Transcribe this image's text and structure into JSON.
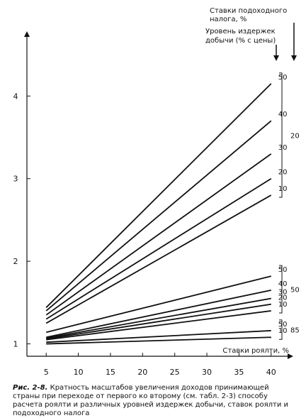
{
  "chart_data": {
    "type": "line",
    "xlabel": "Ставки роялти, %",
    "ylabel": "",
    "x_ticks": [
      5,
      10,
      15,
      20,
      25,
      30,
      35,
      40
    ],
    "y_ticks": [
      1,
      2,
      3,
      4
    ],
    "xlim": [
      2,
      43
    ],
    "ylim": [
      0.85,
      4.75
    ],
    "grid": false,
    "header_cost": "Уровень издержек добычи (% с цены)",
    "header_tax_line1": "Ставки подоходного",
    "header_tax_line2": "налога, %",
    "header_cost_line1": "Уровень издержек",
    "header_cost_line2": "добычи (% с цены)",
    "groups": [
      {
        "tax_rate": "20",
        "series": [
          {
            "name": "50",
            "x": [
              5,
              40
            ],
            "y": [
              1.44,
              4.15
            ]
          },
          {
            "name": "40",
            "x": [
              5,
              40
            ],
            "y": [
              1.4,
              3.7
            ]
          },
          {
            "name": "30",
            "x": [
              5,
              40
            ],
            "y": [
              1.35,
              3.3
            ]
          },
          {
            "name": "20",
            "x": [
              5,
              40
            ],
            "y": [
              1.3,
              3.0
            ]
          },
          {
            "name": "10",
            "x": [
              5,
              40
            ],
            "y": [
              1.25,
              2.8
            ]
          }
        ]
      },
      {
        "tax_rate": "50",
        "series": [
          {
            "name": "50",
            "x": [
              5,
              40
            ],
            "y": [
              1.14,
              1.82
            ]
          },
          {
            "name": "40",
            "x": [
              5,
              40
            ],
            "y": [
              1.08,
              1.65
            ]
          },
          {
            "name": "30",
            "x": [
              5,
              40
            ],
            "y": [
              1.07,
              1.55
            ]
          },
          {
            "name": "20",
            "x": [
              5,
              40
            ],
            "y": [
              1.06,
              1.48
            ]
          },
          {
            "name": "10",
            "x": [
              5,
              40
            ],
            "y": [
              1.05,
              1.4
            ]
          }
        ]
      },
      {
        "tax_rate": "85",
        "series": [
          {
            "name": "50",
            "x": [
              5,
              40
            ],
            "y": [
              1.02,
              1.16
            ]
          },
          {
            "name": "10",
            "x": [
              5,
              40
            ],
            "y": [
              1.0,
              1.08
            ]
          }
        ]
      }
    ]
  },
  "caption": {
    "fig": "Рис. 2-8.",
    "text": " Кратность масштабов увеличения доходов принимающей страны при переходе от первого ко второму (см. табл. 2-3) способу расчета роялти и различных уровней издержек добычи, ставок роялти и подоходного налога"
  }
}
